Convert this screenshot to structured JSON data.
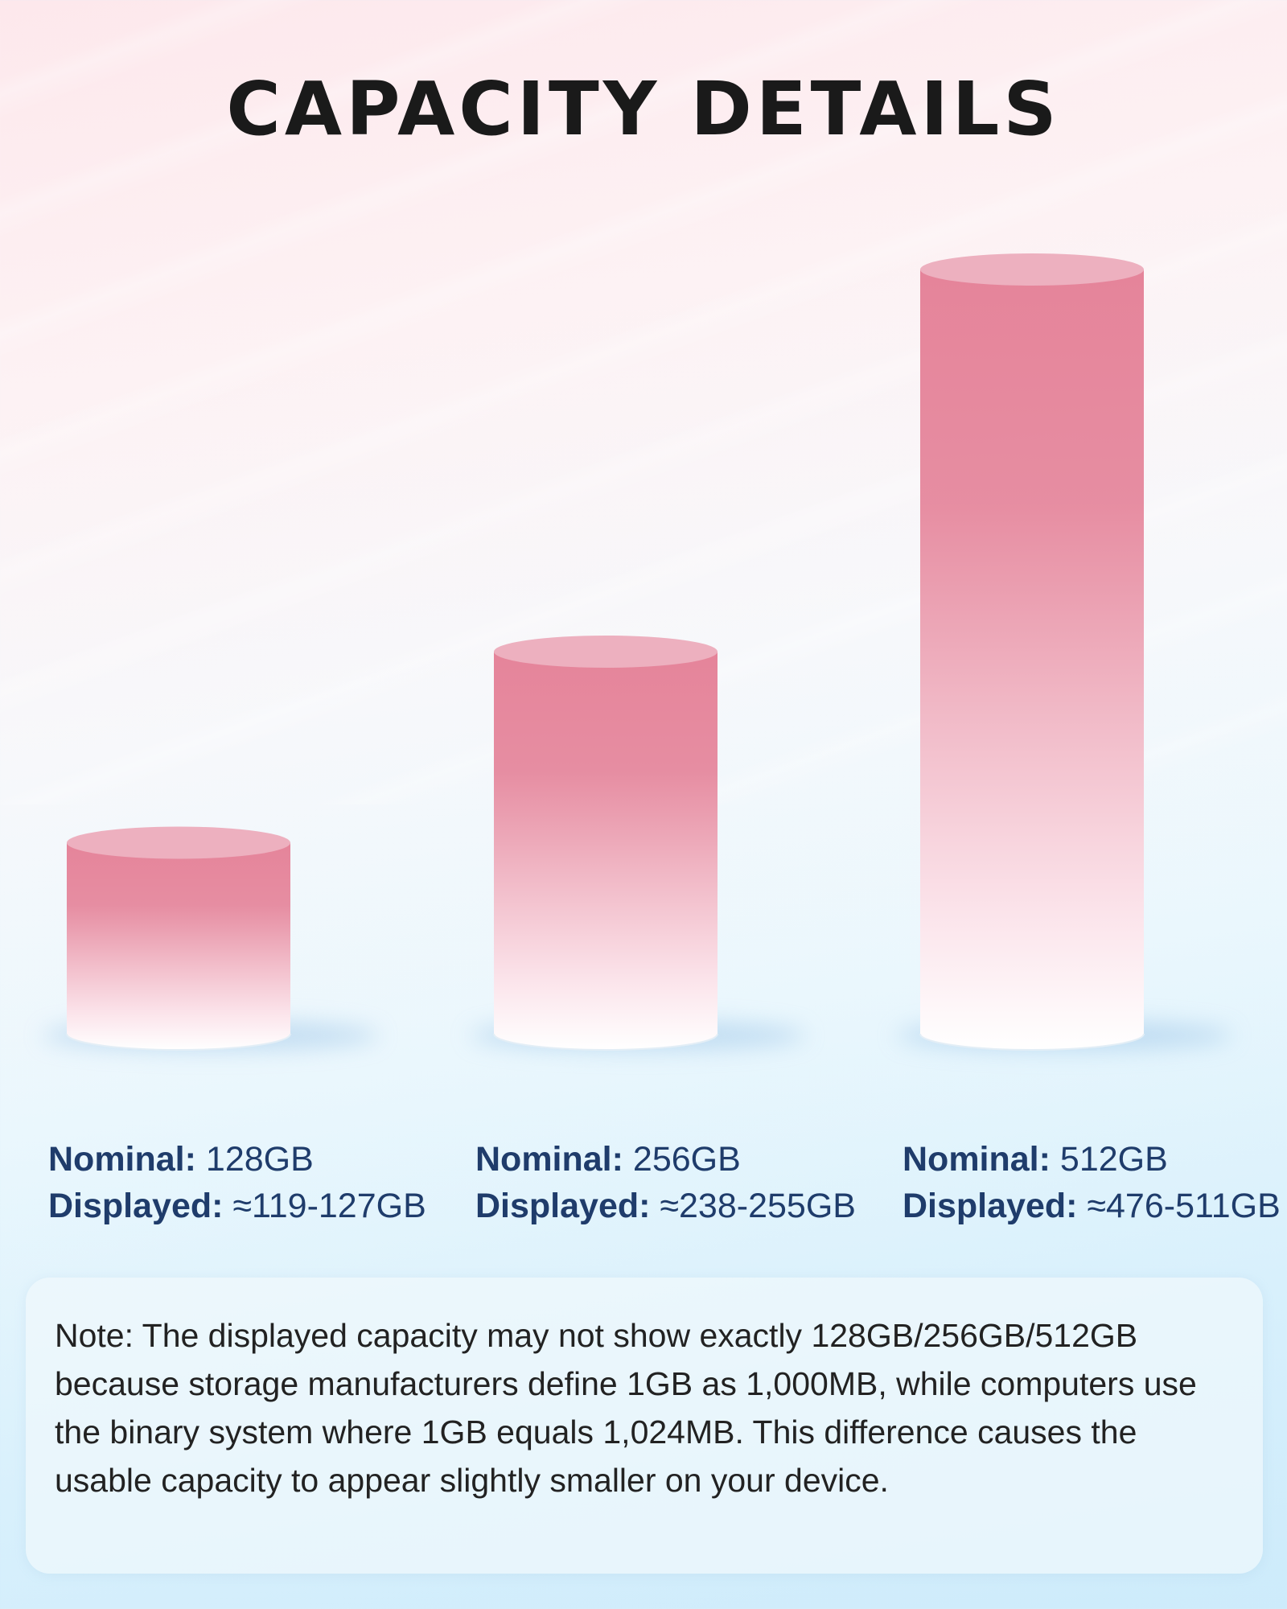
{
  "page": {
    "title": "CAPACITY DETAILS"
  },
  "chart_data": {
    "type": "bar",
    "style": "3d-cylinder",
    "title": "CAPACITY DETAILS",
    "categories": [
      "128GB",
      "256GB",
      "512GB"
    ],
    "values": [
      128,
      256,
      512
    ],
    "unit": "GB",
    "xlabel": "",
    "ylabel": "",
    "grid": false
  },
  "capacities": [
    {
      "nominal_label": "Nominal:",
      "nominal_value": "128GB",
      "displayed_label": "Displayed:",
      "displayed_value": "≈119-127GB"
    },
    {
      "nominal_label": "Nominal:",
      "nominal_value": "256GB",
      "displayed_label": "Displayed:",
      "displayed_value": "≈238-255GB"
    },
    {
      "nominal_label": "Nominal:",
      "nominal_value": "512GB",
      "displayed_label": "Displayed:",
      "displayed_value": "≈476-511GB"
    }
  ],
  "note": {
    "text": "Note: The displayed capacity may not show exactly 128GB/256GB/512GB because storage manufacturers define 1GB as 1,000MB, while computers use the binary system where 1GB equals 1,024MB. This difference causes the usable capacity to appear slightly smaller on your device."
  },
  "colors": {
    "cylinder_top": "#e5849a",
    "cylinder_cap": "#edb0bf",
    "cylinder_bottom": "#ffffff",
    "label_text": "#1f3c6b",
    "title_text": "#1a1a1a"
  }
}
